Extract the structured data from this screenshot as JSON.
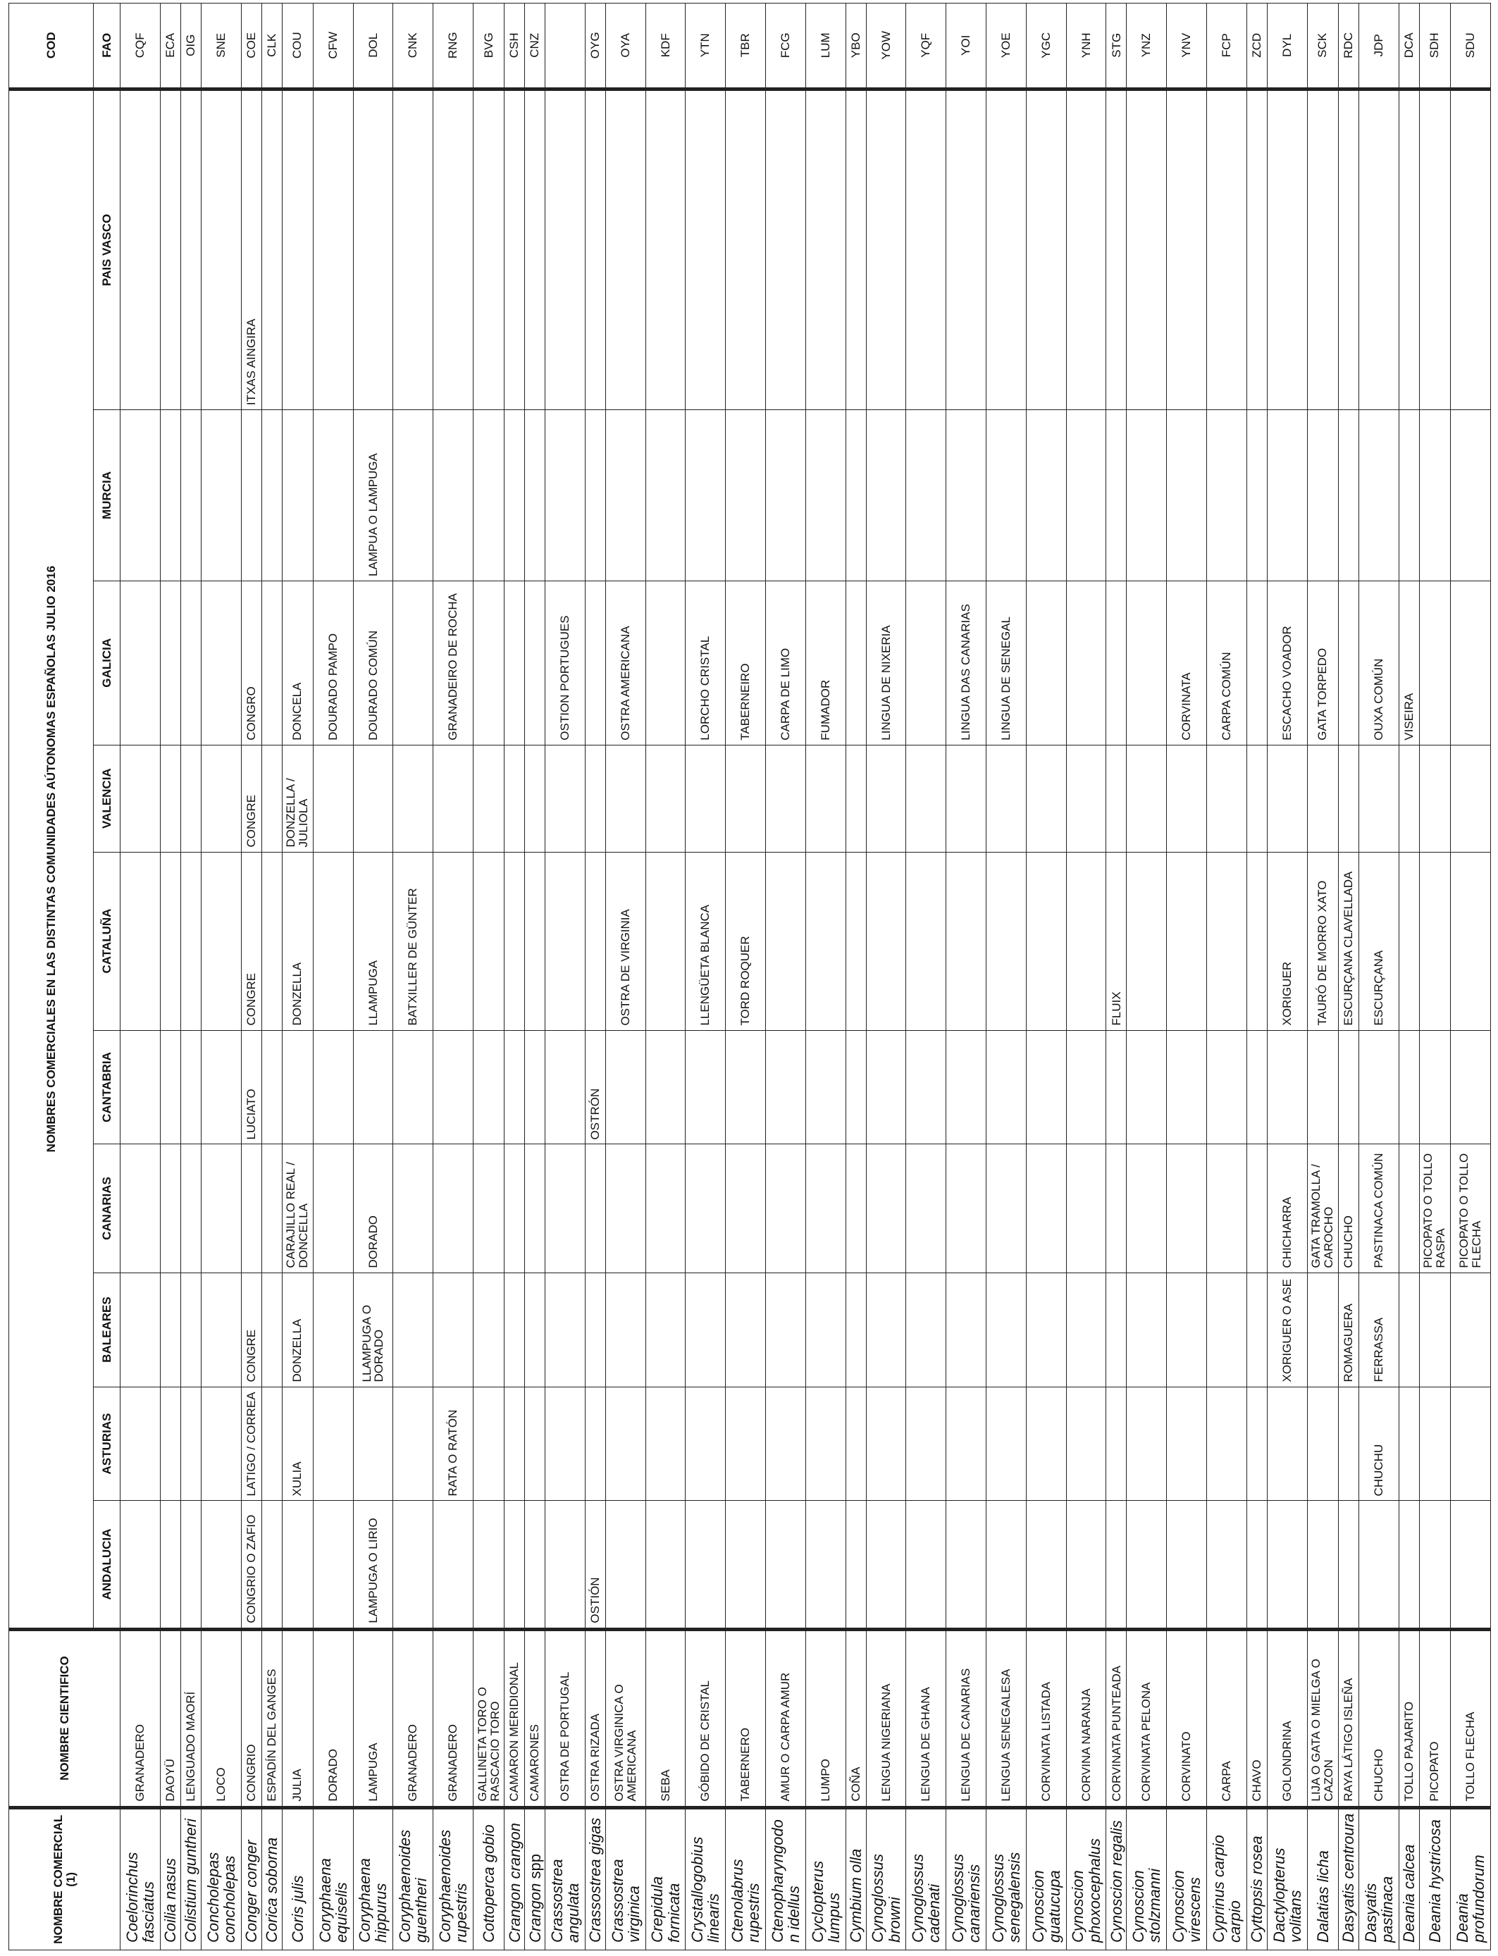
{
  "headers": {
    "common": "NOMBRE COMERCIAL (1)",
    "scientific": "NOMBRE CIENTIFICO",
    "group": "NOMBRES COMERCIALES EN LAS DISTINTAS COMUNIDADES AÚTONOMAS ESPAÑOLAS JULIO 2016",
    "cod": "COD",
    "fao": "FAO",
    "regions": [
      "ANDALUCIA",
      "ASTURIAS",
      "BALEARES",
      "CANARIAS",
      "CANTABRIA",
      "CATALUÑA",
      "VALENCIA",
      "GALICIA",
      "MURCIA",
      "PAIS VASCO"
    ]
  },
  "rows": [
    {
      "sci": "Coelorinchus fasciatus",
      "common": "GRANADERO",
      "regions": [
        "",
        "",
        "",
        "",
        "",
        "",
        "",
        "",
        "",
        ""
      ],
      "fao": "CQF"
    },
    {
      "sci": "Coilia nasus",
      "common": "DAOYÜ",
      "regions": [
        "",
        "",
        "",
        "",
        "",
        "",
        "",
        "",
        "",
        ""
      ],
      "fao": "ECA"
    },
    {
      "sci": "Colistium guntheri",
      "common": "LENGUADO MAORÍ",
      "regions": [
        "",
        "",
        "",
        "",
        "",
        "",
        "",
        "",
        "",
        ""
      ],
      "fao": "OIG"
    },
    {
      "sci": "Concholepas concholepas",
      "common": "LOCO",
      "regions": [
        "",
        "",
        "",
        "",
        "",
        "",
        "",
        "",
        "",
        ""
      ],
      "fao": "SNE"
    },
    {
      "sci": "Conger conger",
      "common": "CONGRIO",
      "regions": [
        "CONGRIO O ZAFIO",
        "LATIGO / CORREA",
        "CONGRE",
        "",
        "LUCIATO",
        "CONGRE",
        "CONGRE",
        "CONGRO",
        "",
        "ITXAS AINGIRA"
      ],
      "fao": "COE"
    },
    {
      "sci": "Corica soborna",
      "common": "ESPADÍN DEL GANGES",
      "regions": [
        "",
        "",
        "",
        "",
        "",
        "",
        "",
        "",
        "",
        ""
      ],
      "fao": "CLK"
    },
    {
      "sci": "Coris julis",
      "common": "JULIA",
      "regions": [
        "",
        "XULIA",
        "DONZELLA",
        "CARAJILLO REAL / DONCELLA",
        "",
        "DONZELLA",
        "DONZELLA / JULIOLA",
        "DONCELA",
        "",
        ""
      ],
      "fao": "COU"
    },
    {
      "sci": "Coryphaena equiselis",
      "common": "DORADO",
      "regions": [
        "",
        "",
        "",
        "",
        "",
        "",
        "",
        "DOURADO PAMPO",
        "",
        ""
      ],
      "fao": "CFW"
    },
    {
      "sci": "Coryphaena hippurus",
      "common": "LAMPUGA",
      "regions": [
        "LAMPUGA O LIRIO",
        "",
        "LLAMPUGA O DORADO",
        "DORADO",
        "",
        "LLAMPUGA",
        "",
        "DOURADO COMÚN",
        "LAMPUA O LAMPUGA",
        ""
      ],
      "fao": "DOL"
    },
    {
      "sci": "Coryphaenoides guentheri",
      "common": "GRANADERO",
      "regions": [
        "",
        "",
        "",
        "",
        "",
        "BATXILLER DE GÜNTER",
        "",
        "",
        "",
        ""
      ],
      "fao": "CNK"
    },
    {
      "sci": "Coryphaenoides rupestris",
      "common": "GRANADERO",
      "regions": [
        "",
        "RATA O RATÓN",
        "",
        "",
        "",
        "",
        "",
        "GRANADEIRO DE ROCHA",
        "",
        ""
      ],
      "fao": "RNG"
    },
    {
      "sci": "Cottoperca gobio",
      "common": "GALLINETA TORO O RASCACIO TORO",
      "regions": [
        "",
        "",
        "",
        "",
        "",
        "",
        "",
        "",
        "",
        ""
      ],
      "fao": "BVG"
    },
    {
      "sci": "Crangon crangon",
      "common": "CAMARON MERIDIONAL",
      "regions": [
        "",
        "",
        "",
        "",
        "",
        "",
        "",
        "",
        "",
        ""
      ],
      "fao": "CSH"
    },
    {
      "sci": "Crangon",
      "sci_extra": "spp",
      "common": "CAMARONES",
      "regions": [
        "",
        "",
        "",
        "",
        "",
        "",
        "",
        "",
        "",
        ""
      ],
      "fao": "CNZ"
    },
    {
      "sci": "Crassostrea angulata",
      "common": "OSTRA DE PORTUGAL",
      "regions": [
        "",
        "",
        "",
        "",
        "",
        "",
        "",
        "OSTION PORTUGUES",
        "",
        ""
      ],
      "fao": ""
    },
    {
      "sci": "Crassostrea gigas",
      "common": "OSTRA RIZADA",
      "regions": [
        "OSTIÓN",
        "",
        "",
        "",
        "OSTRÓN",
        "",
        "",
        "",
        "",
        ""
      ],
      "fao": "OYG"
    },
    {
      "sci": "Crassostrea virginica",
      "common": "OSTRA VIRGINICA O AMERICANA",
      "regions": [
        "",
        "",
        "",
        "",
        "",
        "OSTRA DE VIRGINIA",
        "",
        "OSTRA AMERICANA",
        "",
        ""
      ],
      "fao": "OYA"
    },
    {
      "sci": "Crepidula fornicata",
      "common": "SEBA",
      "regions": [
        "",
        "",
        "",
        "",
        "",
        "",
        "",
        "",
        "",
        ""
      ],
      "fao": "KDF"
    },
    {
      "sci": "Crystallogobius linearis",
      "common": "GÓBIDO DE CRISTAL",
      "regions": [
        "",
        "",
        "",
        "",
        "",
        "LLENGÜETA BLANCA",
        "",
        "LORCHO CRISTAL",
        "",
        ""
      ],
      "fao": "YTN"
    },
    {
      "sci": "Ctenolabrus rupestris",
      "common": "TABERNERO",
      "regions": [
        "",
        "",
        "",
        "",
        "",
        "TORD ROQUER",
        "",
        "TABERNEIRO",
        "",
        ""
      ],
      "fao": "TBR"
    },
    {
      "sci": "Ctenopharyngodon idellus",
      "common": "AMUR O CARPA AMUR",
      "regions": [
        "",
        "",
        "",
        "",
        "",
        "",
        "",
        "CARPA DE LIMO",
        "",
        ""
      ],
      "fao": "FCG"
    },
    {
      "sci": "Cyclopterus lumpus",
      "common": "LUMPO",
      "regions": [
        "",
        "",
        "",
        "",
        "",
        "",
        "",
        "FUMADOR",
        "",
        ""
      ],
      "fao": "LUM"
    },
    {
      "sci": "Cymbium olla",
      "common": "COÑA",
      "regions": [
        "",
        "",
        "",
        "",
        "",
        "",
        "",
        "",
        "",
        ""
      ],
      "fao": "YBO"
    },
    {
      "sci": "Cynoglossus browni",
      "common": "LENGUA NIGERIANA",
      "regions": [
        "",
        "",
        "",
        "",
        "",
        "",
        "",
        "LINGUA DE NIXERIA",
        "",
        ""
      ],
      "fao": "YOW"
    },
    {
      "sci": "Cynoglossus cadenati",
      "common": "LENGUA DE GHANA",
      "regions": [
        "",
        "",
        "",
        "",
        "",
        "",
        "",
        "",
        "",
        ""
      ],
      "fao": "YQF"
    },
    {
      "sci": "Cynoglossus canariensis",
      "common": "LENGUA DE CANARIAS",
      "regions": [
        "",
        "",
        "",
        "",
        "",
        "",
        "",
        "LINGUA DAS CANARIAS",
        "",
        ""
      ],
      "fao": "YOI"
    },
    {
      "sci": "Cynoglossus senegalensis",
      "common": "LENGUA SENEGALESA",
      "regions": [
        "",
        "",
        "",
        "",
        "",
        "",
        "",
        "LINGUA DE SENEGAL",
        "",
        ""
      ],
      "fao": "YOE"
    },
    {
      "sci": "Cynoscion guatucupa",
      "common": "CORVINATA LISTADA",
      "regions": [
        "",
        "",
        "",
        "",
        "",
        "",
        "",
        "",
        "",
        ""
      ],
      "fao": "YGC"
    },
    {
      "sci": "Cynoscion phoxocephalus",
      "common": "CORVINA NARANJA",
      "regions": [
        "",
        "",
        "",
        "",
        "",
        "",
        "",
        "",
        "",
        ""
      ],
      "fao": "YNH"
    },
    {
      "sci": "Cynoscion regalis",
      "common": "CORVINATA PUNTEADA",
      "regions": [
        "",
        "",
        "",
        "",
        "",
        "FLUIX",
        "",
        "",
        "",
        ""
      ],
      "fao": "STG"
    },
    {
      "sci": "Cynoscion stolzmanni",
      "common": "CORVINATA PELONA",
      "regions": [
        "",
        "",
        "",
        "",
        "",
        "",
        "",
        "",
        "",
        ""
      ],
      "fao": "YNZ"
    },
    {
      "sci": "Cynoscion virescens",
      "common": "CORVINATO",
      "regions": [
        "",
        "",
        "",
        "",
        "",
        "",
        "",
        "CORVINATA",
        "",
        ""
      ],
      "fao": "YNV"
    },
    {
      "sci": "Cyprinus carpio carpio",
      "common": "CARPA",
      "regions": [
        "",
        "",
        "",
        "",
        "",
        "",
        "",
        "CARPA COMÚN",
        "",
        ""
      ],
      "fao": "FCP"
    },
    {
      "sci": "Cyttopsis rosea",
      "common": "CHAVO",
      "regions": [
        "",
        "",
        "",
        "",
        "",
        "",
        "",
        "",
        "",
        ""
      ],
      "fao": "ZCD"
    },
    {
      "sci": "Dactylopterus volitans",
      "common": "GOLONDRINA",
      "regions": [
        "",
        "",
        "XORIGUER O ASE",
        "CHICHARRA",
        "",
        "XORIGUER",
        "",
        "ESCACHO VOADOR",
        "",
        ""
      ],
      "fao": "DYL"
    },
    {
      "sci": "Dalatias licha",
      "common": "LIJA O GATA O MIELGA O CAZON",
      "regions": [
        "",
        "",
        "",
        "GATA TRAMOLLA / CAROCHO",
        "",
        "TAURÓ DE MORRO XATO",
        "",
        "GATA TORPEDO",
        "",
        ""
      ],
      "fao": "SCK"
    },
    {
      "sci": "Dasyatis centroura",
      "common": "RAYA LÁTIGO ISLEÑA",
      "regions": [
        "",
        "",
        "ROMAGUERA",
        "CHUCHO",
        "",
        "ESCURÇANA CLAVELLADA",
        "",
        "",
        "",
        ""
      ],
      "fao": "RDC"
    },
    {
      "sci": "Dasyatis pastinaca",
      "common": "CHUCHO",
      "regions": [
        "",
        "CHUCHU",
        "FERRASSA",
        "PASTINACA COMÚN",
        "",
        "ESCURÇANA",
        "",
        "OUXA COMÚN",
        "",
        ""
      ],
      "fao": "JDP"
    },
    {
      "sci": "Deania calcea",
      "common": "TOLLO PAJARITO",
      "regions": [
        "",
        "",
        "",
        "",
        "",
        "",
        "",
        "VISEIRA",
        "",
        ""
      ],
      "fao": "DCA"
    },
    {
      "sci": "Deania hystricosa",
      "common": "PICOPATO",
      "regions": [
        "",
        "",
        "",
        "PICOPATO O TOLLO RASPA",
        "",
        "",
        "",
        "",
        "",
        ""
      ],
      "fao": "SDH"
    },
    {
      "sci": "Deania profundorum",
      "common": "TOLLO FLECHA",
      "regions": [
        "",
        "",
        "",
        "PICOPATO O TOLLO FLECHA",
        "",
        "",
        "",
        "",
        "",
        ""
      ],
      "fao": "SDU"
    }
  ]
}
